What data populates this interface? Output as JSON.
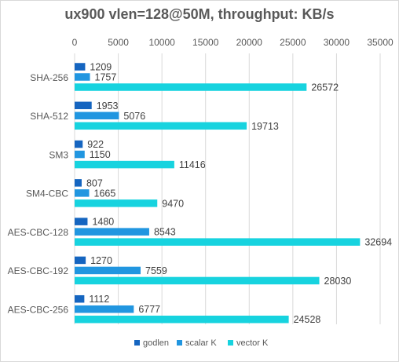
{
  "chart_data": {
    "type": "bar",
    "orientation": "horizontal",
    "title": "ux900 vlen=128@50M, throughput: KB/s",
    "categories": [
      "SHA-256",
      "SHA-512",
      "SM3",
      "SM4-CBC",
      "AES-CBC-128",
      "AES-CBC-192",
      "AES-CBC-256"
    ],
    "series": [
      {
        "name": "godlen",
        "color": "#1565c0",
        "values": [
          1209,
          1953,
          922,
          807,
          1480,
          1270,
          1112
        ]
      },
      {
        "name": "scalar K",
        "color": "#2196e0",
        "values": [
          1757,
          5076,
          1150,
          1665,
          8543,
          7559,
          6777
        ]
      },
      {
        "name": "vector K",
        "color": "#17d3df",
        "values": [
          26572,
          19713,
          11416,
          9470,
          32694,
          28030,
          24528
        ]
      }
    ],
    "xlim": [
      0,
      35000
    ],
    "xticks": [
      "0",
      "5000",
      "10000",
      "15000",
      "20000",
      "25000",
      "30000",
      "35000"
    ],
    "xlabel": "",
    "ylabel": "",
    "grid": true,
    "legend_position": "bottom",
    "x_axis_position": "top"
  }
}
